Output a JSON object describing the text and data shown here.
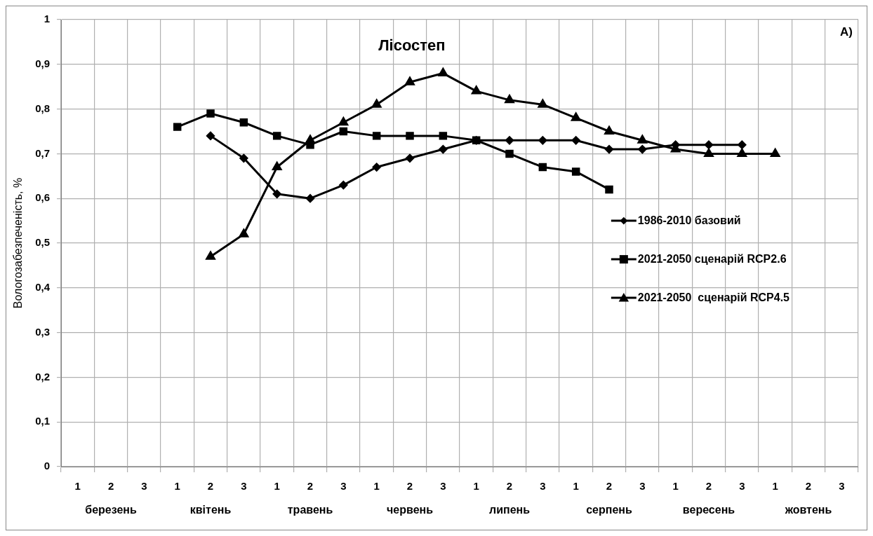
{
  "chart_data": {
    "type": "line",
    "title": "Лісостеп",
    "ylabel": "Вологозабезпеченість, %",
    "categories": [
      "1",
      "2",
      "3",
      "1",
      "2",
      "3",
      "1",
      "2",
      "3",
      "1",
      "2",
      "3",
      "1",
      "2",
      "3",
      "1",
      "2",
      "3",
      "1",
      "2",
      "3",
      "1",
      "2",
      "3"
    ],
    "annotations": [
      "березень",
      "квітень",
      "травень",
      "червень",
      "липень",
      "серпень",
      "вересень",
      "жовтень",
      "А)"
    ],
    "series": [
      {
        "name": "1986-2010 базовий",
        "color": "#000000",
        "marker": "diamond",
        "values": [
          null,
          null,
          null,
          null,
          0.74,
          0.69,
          0.61,
          0.6,
          0.63,
          0.67,
          0.69,
          0.71,
          0.73,
          0.73,
          0.73,
          0.73,
          0.71,
          0.71,
          0.72,
          0.72,
          0.72,
          null,
          null,
          null
        ]
      },
      {
        "name": "2021-2050 сценарій RCP2.6",
        "color": "#000000",
        "marker": "square",
        "values": [
          null,
          null,
          null,
          0.76,
          0.79,
          0.77,
          0.74,
          0.72,
          0.75,
          0.74,
          0.74,
          0.74,
          0.73,
          0.7,
          0.67,
          0.66,
          0.62,
          null,
          null,
          null,
          null,
          null,
          null,
          null
        ]
      },
      {
        "name": "2021-2050  сценарій RCP4.5",
        "color": "#000000",
        "marker": "triangle",
        "values": [
          null,
          null,
          null,
          null,
          0.47,
          0.52,
          0.67,
          0.73,
          0.77,
          0.81,
          0.86,
          0.88,
          0.84,
          0.82,
          0.81,
          0.78,
          0.75,
          0.73,
          0.71,
          0.7,
          0.7,
          0.7,
          null,
          null
        ]
      }
    ],
    "ylim": [
      0,
      1
    ],
    "yticks": [
      0,
      {
        "value": 0.1,
        "label": "0,1"
      },
      {
        "value": 0.2,
        "label": "0,2"
      },
      {
        "value": 0.3,
        "label": "0,3"
      },
      {
        "value": 0.4,
        "label": "0,4"
      },
      {
        "value": 0.5,
        "label": "0,5"
      },
      {
        "value": 0.6,
        "label": "0,6"
      },
      {
        "value": 0.7,
        "label": "0,7"
      },
      {
        "value": 0.8,
        "label": "0,8"
      },
      {
        "value": 0.9,
        "label": "0,9"
      },
      1
    ],
    "grid": true,
    "legend": "right",
    "line_style": "solid"
  }
}
